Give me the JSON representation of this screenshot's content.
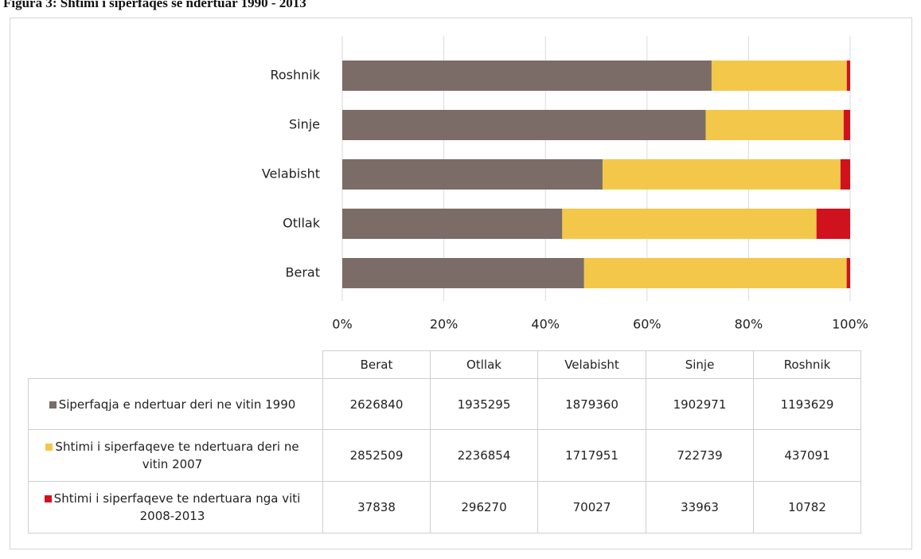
{
  "chart_data": {
    "type": "bar",
    "orientation": "horizontal",
    "stacking": "percent",
    "title": "Figura 3: Shtimi i siperfaqes se ndertuar 1990 - 2013",
    "categories": [
      "Berat",
      "Otllak",
      "Velabisht",
      "Sinje",
      "Roshnik"
    ],
    "series": [
      {
        "name": "Siperfaqja  e ndertuar deri ne vitin 1990",
        "color": "#7b6c67",
        "values": [
          2626840,
          1935295,
          1879360,
          1902971,
          1193629
        ]
      },
      {
        "name": "Shtimi i siperfaqeve  te ndertuara deri ne vitin 2007",
        "color": "#f3c84a",
        "values": [
          2852509,
          2236854,
          1717951,
          722739,
          437091
        ]
      },
      {
        "name": "Shtimi i siperfaqeve  te ndertuara nga viti 2008-2013",
        "color": "#d0121e",
        "values": [
          37838,
          296270,
          70027,
          33963,
          10782
        ]
      }
    ],
    "xlim": [
      0,
      100
    ],
    "xticks": [
      {
        "value": 0,
        "label": "0%"
      },
      {
        "value": 20,
        "label": "20%"
      },
      {
        "value": 40,
        "label": "40%"
      },
      {
        "value": 60,
        "label": "60%"
      },
      {
        "value": 80,
        "label": "80%"
      },
      {
        "value": 100,
        "label": "100%"
      }
    ],
    "grid": true
  }
}
